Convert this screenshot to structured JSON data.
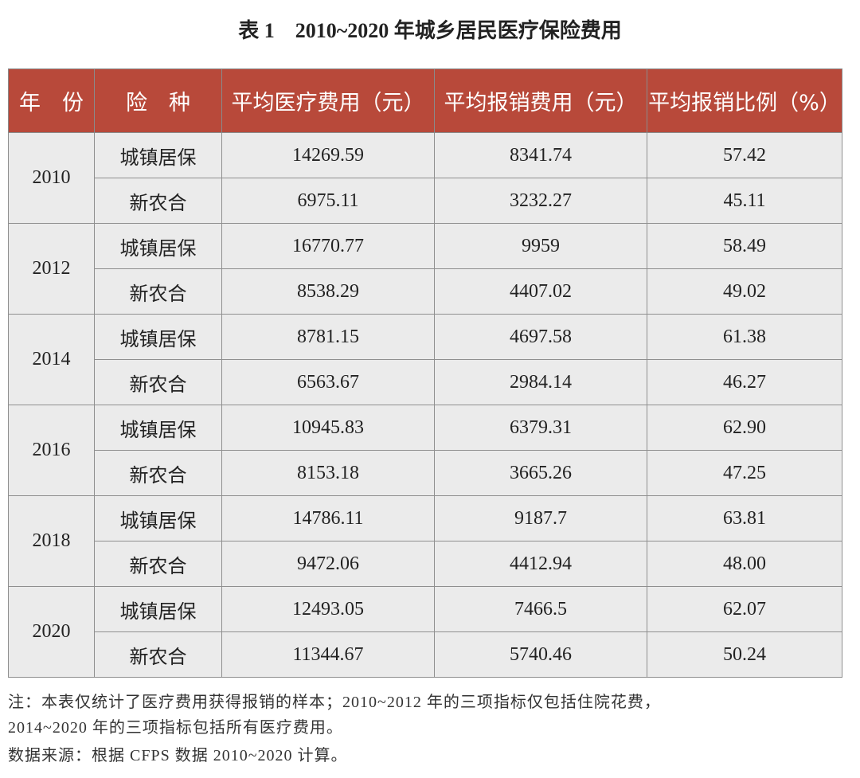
{
  "header": {
    "title": "表 1　2010~2020 年城乡居民医疗保险费用"
  },
  "table": {
    "columns": [
      "年　份",
      "险　种",
      "平均医疗费用（元）",
      "平均报销费用（元）",
      "平均报销比例（%）"
    ],
    "groups": [
      {
        "year": "2010",
        "rows": [
          [
            "城镇居保",
            "14269.59",
            "8341.74",
            "57.42"
          ],
          [
            "新农合",
            "6975.11",
            "3232.27",
            "45.11"
          ]
        ]
      },
      {
        "year": "2012",
        "rows": [
          [
            "城镇居保",
            "16770.77",
            "9959",
            "58.49"
          ],
          [
            "新农合",
            "8538.29",
            "4407.02",
            "49.02"
          ]
        ]
      },
      {
        "year": "2014",
        "rows": [
          [
            "城镇居保",
            "8781.15",
            "4697.58",
            "61.38"
          ],
          [
            "新农合",
            "6563.67",
            "2984.14",
            "46.27"
          ]
        ]
      },
      {
        "year": "2016",
        "rows": [
          [
            "城镇居保",
            "10945.83",
            "6379.31",
            "62.90"
          ],
          [
            "新农合",
            "8153.18",
            "3665.26",
            "47.25"
          ]
        ]
      },
      {
        "year": "2018",
        "rows": [
          [
            "城镇居保",
            "14786.11",
            "9187.7",
            "63.81"
          ],
          [
            "新农合",
            "9472.06",
            "4412.94",
            "48.00"
          ]
        ]
      },
      {
        "year": "2020",
        "rows": [
          [
            "城镇居保",
            "12493.05",
            "7466.5",
            "62.07"
          ],
          [
            "新农合",
            "11344.67",
            "5740.46",
            "50.24"
          ]
        ]
      }
    ]
  },
  "notes": {
    "note": [
      "注：本表仅统计了医疗费用获得报销的样本；2010~2012 年的三项指标仅包括住院花费，",
      "2014~2020 年的三项指标包括所有医疗费用。"
    ],
    "source": "数据来源：根据 CFPS 数据 2010~2020 计算。"
  }
}
